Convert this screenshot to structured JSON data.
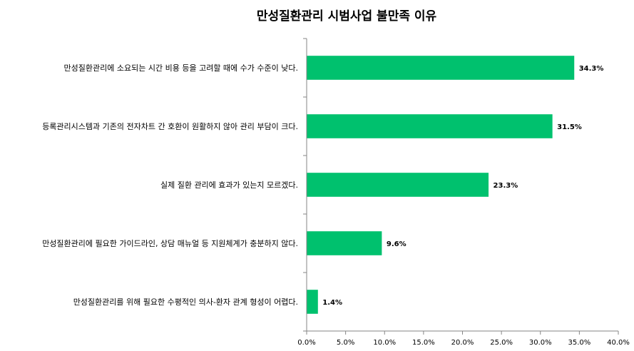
{
  "chart_data": {
    "type": "bar",
    "orientation": "horizontal",
    "title": "만성질환관리 시범사업 불만족 이유",
    "categories": [
      "만성질환관리에 소요되는 시간 비용 등을 고려할 때에 수가 수준이 낮다.",
      "등록관리시스템과 기존의 전자차트 간 호환이 원활하지 않아 관리 부담이 크다.",
      "실제 질환 관리에 효과가 있는지 모르겠다.",
      "만성질환관리에 필요한 가이드라인, 상담 매뉴얼 등 지원체계가 충분하지 않다.",
      "만성질환관리를 위해 필요한 수평적인 의사-환자 관계 형성이 어렵다."
    ],
    "values": [
      34.3,
      31.5,
      23.3,
      9.6,
      1.4
    ],
    "value_labels": [
      "34.3%",
      "31.5%",
      "23.3%",
      "9.6%",
      "1.4%"
    ],
    "xlim": [
      0,
      40
    ],
    "xticks": [
      0,
      5,
      10,
      15,
      20,
      25,
      30,
      35,
      40
    ],
    "xtick_labels": [
      "0.0%",
      "5.0%",
      "10.0%",
      "15.0%",
      "20.0%",
      "25.0%",
      "30.0%",
      "35.0%",
      "40.0%"
    ],
    "xlabel": "",
    "ylabel": "",
    "grid": false,
    "legend": "none",
    "bar_color": "#00c16e"
  }
}
